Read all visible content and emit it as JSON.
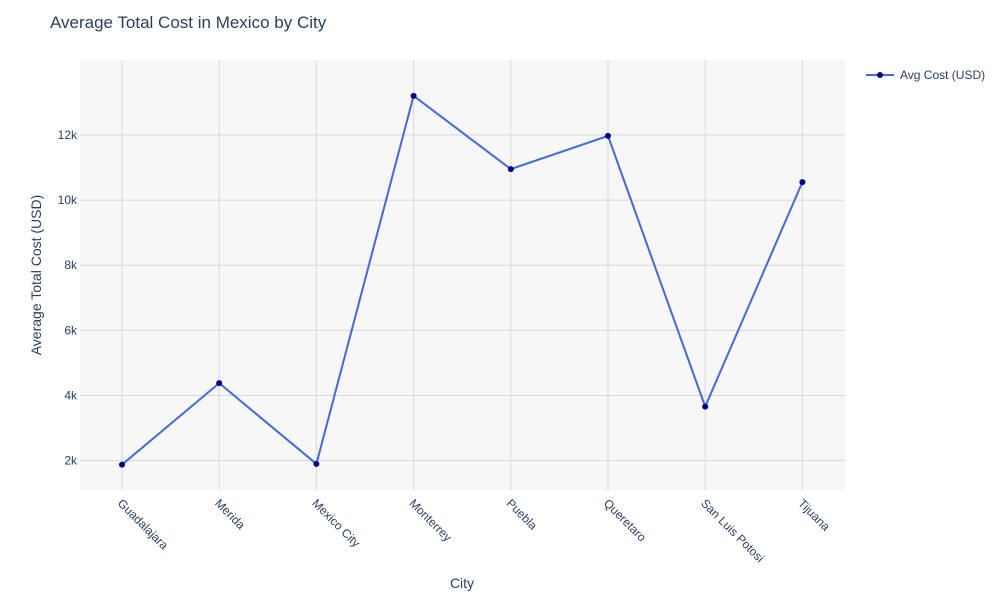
{
  "chart_data": {
    "type": "line",
    "title": "Average Total Cost in Mexico by City",
    "xlabel": "City",
    "ylabel": "Average Total Cost (USD)",
    "categories": [
      "Guadalajara",
      "Merida",
      "Mexico City",
      "Monterrey",
      "Puebla",
      "Queretaro",
      "San Luis Potosi",
      "Tijuana"
    ],
    "series": [
      {
        "name": "Avg Cost (USD)",
        "values": [
          1880,
          4380,
          1900,
          13200,
          10950,
          11970,
          3660,
          10550
        ]
      }
    ],
    "yticks": [
      2000,
      4000,
      6000,
      8000,
      10000,
      12000
    ],
    "ytick_labels": [
      "2k",
      "4k",
      "6k",
      "8k",
      "10k",
      "12k"
    ],
    "ylim": [
      1100,
      14300
    ],
    "grid": true,
    "legend_position": "top-right",
    "colors": {
      "line": "#4169e1",
      "marker": "#00008b",
      "plot_bg": "#f7f7f7",
      "grid": "#d9d9d9",
      "text": "#2a3f5f"
    }
  }
}
